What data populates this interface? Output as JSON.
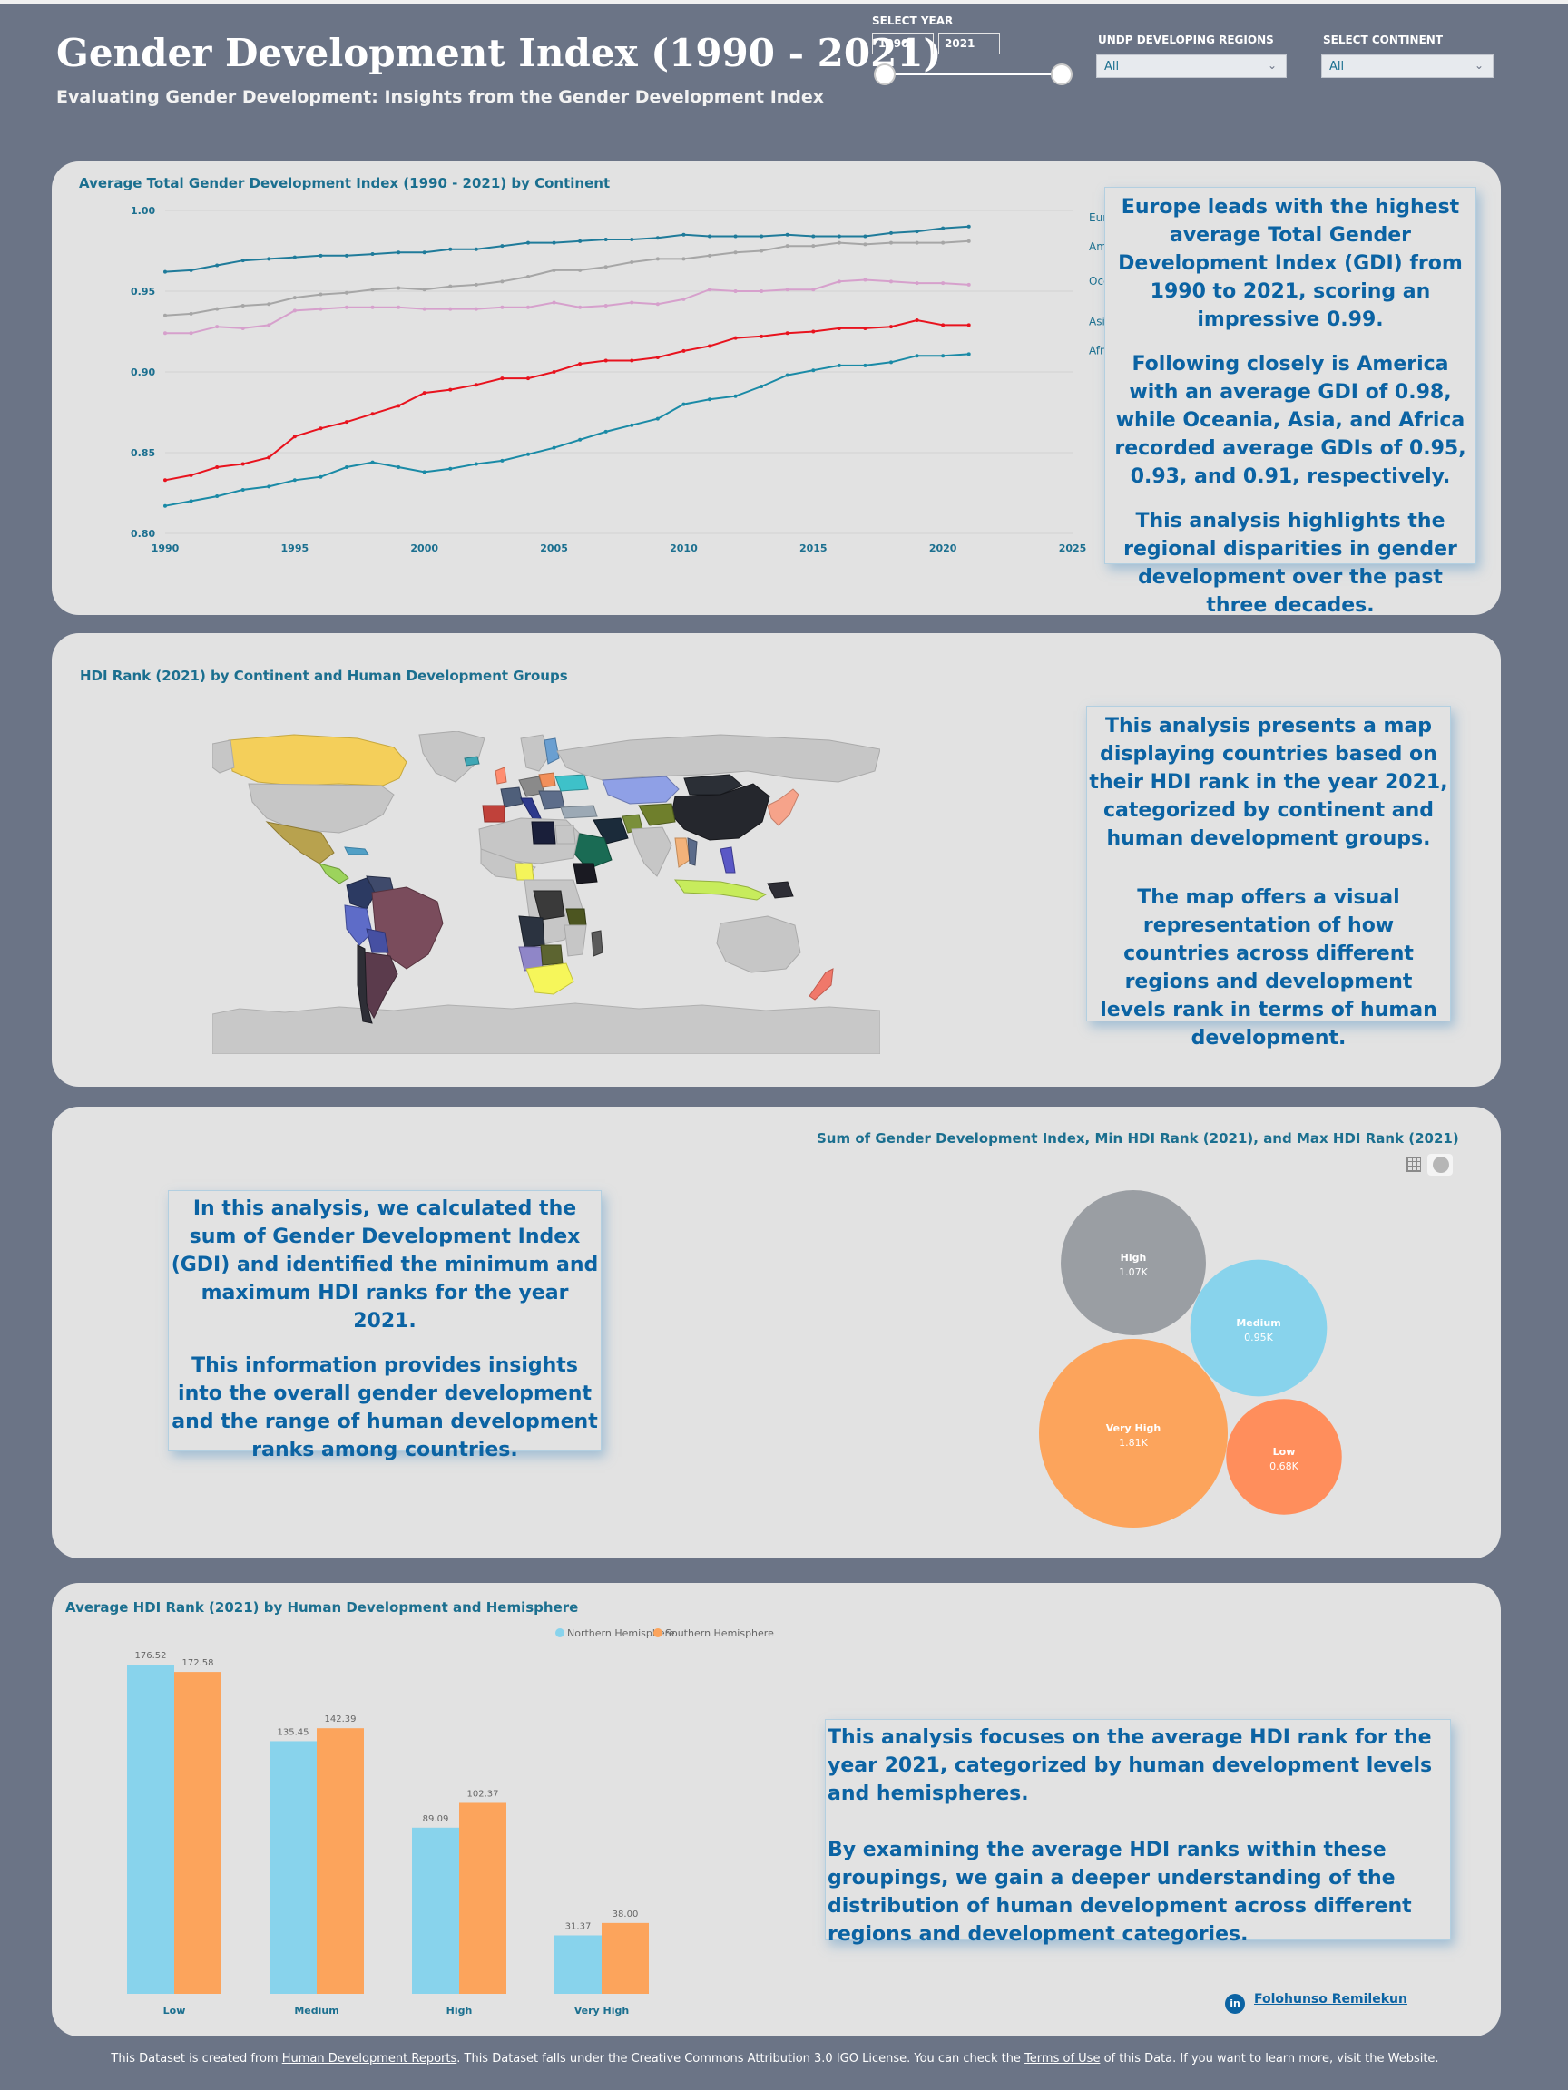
{
  "header": {
    "title": "Gender Development Index (1990 - 2021)",
    "subtitle": "Evaluating Gender Development: Insights from the Gender Development Index"
  },
  "filters": {
    "year_label": "SELECT YEAR",
    "year_start": "1990",
    "year_end": "2021",
    "region_label": "UNDP DEVELOPING REGIONS",
    "region_value": "All",
    "continent_label": "SELECT CONTINENT",
    "continent_value": "All"
  },
  "line_section": {
    "title": "Average Total Gender Development Index (1990 - 2021) by Continent",
    "card": [
      "Europe leads with the highest average Total Gender Development Index (GDI) from 1990 to 2021, scoring an impressive 0.99.",
      "Following closely is America with an average GDI of 0.98, while Oceania, Asia, and Africa recorded average GDIs of 0.95, 0.93, and 0.91, respectively.",
      "This analysis highlights the regional disparities in gender development over the past three decades."
    ]
  },
  "map_section": {
    "title": "HDI Rank (2021) by Continent and Human Development Groups",
    "card": [
      "This analysis presents a map displaying countries based on their HDI rank in the year 2021, categorized by continent and human development groups.",
      "The map offers a visual representation of how countries across different regions and development levels rank in terms of human development."
    ]
  },
  "bubble_section": {
    "title": "Sum of Gender Development Index, Min HDI Rank (2021), and Max HDI Rank (2021)",
    "card": [
      "In this analysis, we calculated the sum of Gender Development Index (GDI) and identified the minimum and maximum HDI ranks for the year 2021.",
      "This information provides insights into the overall gender development and the range of human development ranks among countries."
    ]
  },
  "bar_section": {
    "title": "Average HDI Rank (2021) by Human Development and Hemisphere",
    "card": [
      "This analysis focuses on the average HDI rank for the year 2021, categorized by human development levels and hemispheres.",
      "By examining the average HDI ranks within these groupings, we gain a deeper understanding of the distribution of human development across different regions and development categories."
    ]
  },
  "chart_data": [
    {
      "type": "line",
      "title": "Average Total Gender Development Index (1990 - 2021) by Continent",
      "x": [
        1990,
        1991,
        1992,
        1993,
        1994,
        1995,
        1996,
        1997,
        1998,
        1999,
        2000,
        2001,
        2002,
        2003,
        2004,
        2005,
        2006,
        2007,
        2008,
        2009,
        2010,
        2011,
        2012,
        2013,
        2014,
        2015,
        2016,
        2017,
        2018,
        2019,
        2020,
        2021
      ],
      "xlim": [
        1990,
        2025
      ],
      "xticks": [
        "1990",
        "1995",
        "2000",
        "2005",
        "2010",
        "2015",
        "2020",
        "2025"
      ],
      "ylim": [
        0.8,
        1.0
      ],
      "yticks": [
        "0.80",
        "0.85",
        "0.90",
        "0.95",
        "1.00"
      ],
      "legend": "right",
      "series": [
        {
          "name": "Europe",
          "color": "#1f7b9a",
          "values": [
            0.962,
            0.963,
            0.966,
            0.969,
            0.97,
            0.971,
            0.972,
            0.972,
            0.973,
            0.974,
            0.974,
            0.976,
            0.976,
            0.978,
            0.98,
            0.98,
            0.981,
            0.982,
            0.982,
            0.983,
            0.985,
            0.984,
            0.984,
            0.984,
            0.985,
            0.984,
            0.984,
            0.984,
            0.986,
            0.987,
            0.989,
            0.99
          ]
        },
        {
          "name": "America",
          "color": "#a6a6a6",
          "values": [
            0.935,
            0.936,
            0.939,
            0.941,
            0.942,
            0.946,
            0.948,
            0.949,
            0.951,
            0.952,
            0.951,
            0.953,
            0.954,
            0.956,
            0.959,
            0.963,
            0.963,
            0.965,
            0.968,
            0.97,
            0.97,
            0.972,
            0.974,
            0.975,
            0.978,
            0.978,
            0.98,
            0.979,
            0.98,
            0.98,
            0.98,
            0.981
          ]
        },
        {
          "name": "Oceania",
          "color": "#d6a0cc",
          "values": [
            0.924,
            0.924,
            0.928,
            0.927,
            0.929,
            0.938,
            0.939,
            0.94,
            0.94,
            0.94,
            0.939,
            0.939,
            0.939,
            0.94,
            0.94,
            0.943,
            0.94,
            0.941,
            0.943,
            0.942,
            0.945,
            0.951,
            0.95,
            0.95,
            0.951,
            0.951,
            0.956,
            0.957,
            0.956,
            0.955,
            0.955,
            0.954
          ]
        },
        {
          "name": "Asia",
          "color": "#e8131e",
          "values": [
            0.833,
            0.836,
            0.841,
            0.843,
            0.847,
            0.86,
            0.865,
            0.869,
            0.874,
            0.879,
            0.887,
            0.889,
            0.892,
            0.896,
            0.896,
            0.9,
            0.905,
            0.907,
            0.907,
            0.909,
            0.913,
            0.916,
            0.921,
            0.922,
            0.924,
            0.925,
            0.927,
            0.927,
            0.928,
            0.932,
            0.929,
            0.929
          ]
        },
        {
          "name": "Africa",
          "color": "#1a8aa6",
          "values": [
            0.817,
            0.82,
            0.823,
            0.827,
            0.829,
            0.833,
            0.835,
            0.841,
            0.844,
            0.841,
            0.838,
            0.84,
            0.843,
            0.845,
            0.849,
            0.853,
            0.858,
            0.863,
            0.867,
            0.871,
            0.88,
            0.883,
            0.885,
            0.891,
            0.898,
            0.901,
            0.904,
            0.904,
            0.906,
            0.91,
            0.91,
            0.911
          ]
        }
      ]
    },
    {
      "type": "bubble",
      "title": "Sum of Gender Development Index, Min HDI Rank (2021), and Max HDI Rank (2021)",
      "items": [
        {
          "label": "High",
          "value": 1.07,
          "display": "1.07K",
          "color": "#9a9ea3"
        },
        {
          "label": "Medium",
          "value": 0.95,
          "display": "0.95K",
          "color": "#88d3ec"
        },
        {
          "label": "Very High",
          "value": 1.81,
          "display": "1.81K",
          "color": "#fca45c"
        },
        {
          "label": "Low",
          "value": 0.68,
          "display": "0.68K",
          "color": "#ff8e5c"
        }
      ]
    },
    {
      "type": "bar",
      "title": "Average HDI Rank (2021) by Human Development and Hemisphere",
      "categories": [
        "Low",
        "Medium",
        "High",
        "Very High"
      ],
      "ylim": [
        0,
        176.52
      ],
      "legend": "top",
      "series": [
        {
          "name": "Northern Hemisphere",
          "color": "#88d3ec",
          "values": [
            176.52,
            135.45,
            89.09,
            31.37
          ],
          "labels": [
            "176.52",
            "135.45",
            "89.09",
            "31.37"
          ]
        },
        {
          "name": "Southern Hemisphere",
          "color": "#fca45c",
          "values": [
            172.58,
            142.39,
            102.37,
            38.0
          ],
          "labels": [
            "172.58",
            "142.39",
            "102.37",
            "38.00"
          ]
        }
      ]
    }
  ],
  "author": "Folohunso Remilekun",
  "footer": {
    "part1": "This Dataset is created from ",
    "link1": "Human Development Reports",
    "part2": ". This Dataset falls under the Creative Commons Attribution 3.0 IGO License. You can check the ",
    "link2": "Terms of Use",
    "part3": " of this Data. If you want to learn more, visit the Website."
  }
}
